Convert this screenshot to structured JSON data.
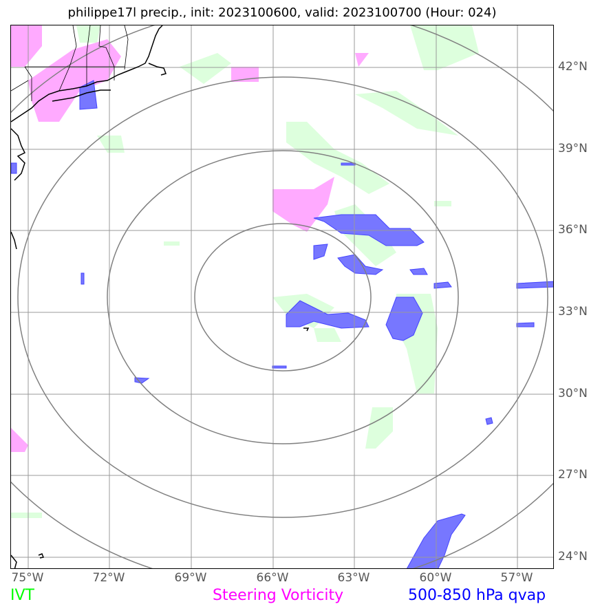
{
  "title": "philippe17l precip., init: 2023100600, valid: 2023100700 (Hour: 024)",
  "map": {
    "lat_labels": [
      "42°N",
      "39°N",
      "36°N",
      "33°N",
      "30°N",
      "27°N",
      "24°N"
    ],
    "lon_labels": [
      "75°W",
      "72°W",
      "69°W",
      "66°W",
      "63°W",
      "60°W",
      "57°W"
    ],
    "grid_color": "#999999",
    "range_ring_color": "#808080"
  },
  "legend": [
    {
      "label": "IVT",
      "color": "#00ff00"
    },
    {
      "label": "Steering Vorticity",
      "color": "#ff00ff"
    },
    {
      "label": "500-850 hPa qvap",
      "color": "#0000ff"
    }
  ],
  "colors": {
    "ivt_fill": "#ddffdd",
    "vorticity_fill": "#ffaaff",
    "qvap_fill": "#7777ff",
    "coastline": "#000000"
  }
}
